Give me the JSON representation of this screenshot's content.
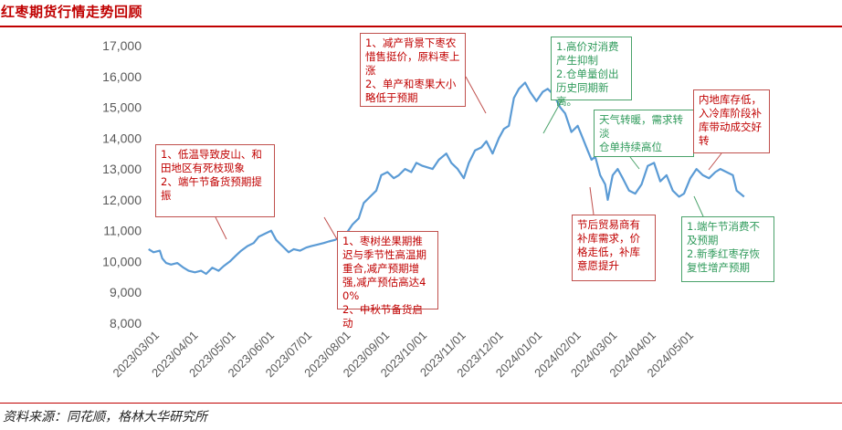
{
  "header": {
    "title": "红枣期货行情走势回顾"
  },
  "footer": {
    "source": "资料来源：同花顺，格林大华研究所"
  },
  "colors": {
    "line": "#5b9bd5",
    "title": "#c00000",
    "red_callout": "#c00000",
    "green_callout": "#2e9a5a"
  },
  "chart_data": {
    "type": "line",
    "title": "",
    "xlabel": "",
    "ylabel": "",
    "ylim": [
      8000,
      17000
    ],
    "yticks": [
      "8,000",
      "9,000",
      "10,000",
      "11,000",
      "12,000",
      "13,000",
      "14,000",
      "15,000",
      "16,000",
      "17,000"
    ],
    "xticks": [
      "2023/03/01",
      "2023/04/01",
      "2023/05/01",
      "2023/06/01",
      "2023/07/01",
      "2023/08/01",
      "2023/09/01",
      "2023/10/01",
      "2023/11/01",
      "2023/12/01",
      "2024/01/01",
      "2024/02/01",
      "2024/03/01",
      "2024/04/01",
      "2024/05/01"
    ],
    "grid": false,
    "legend": "none",
    "series": [
      {
        "points": [
          [
            "2023-02-20",
            10400
          ],
          [
            "2023-02-24",
            10300
          ],
          [
            "2023-03-01",
            10350
          ],
          [
            "2023-03-03",
            10100
          ],
          [
            "2023-03-06",
            9950
          ],
          [
            "2023-03-10",
            9900
          ],
          [
            "2023-03-15",
            9950
          ],
          [
            "2023-03-20",
            9800
          ],
          [
            "2023-03-24",
            9700
          ],
          [
            "2023-03-29",
            9650
          ],
          [
            "2023-04-03",
            9700
          ],
          [
            "2023-04-07",
            9600
          ],
          [
            "2023-04-12",
            9800
          ],
          [
            "2023-04-17",
            9700
          ],
          [
            "2023-04-21",
            9850
          ],
          [
            "2023-04-26",
            10000
          ],
          [
            "2023-05-01",
            10200
          ],
          [
            "2023-05-05",
            10350
          ],
          [
            "2023-05-10",
            10500
          ],
          [
            "2023-05-15",
            10600
          ],
          [
            "2023-05-19",
            10800
          ],
          [
            "2023-05-24",
            10900
          ],
          [
            "2023-05-29",
            11000
          ],
          [
            "2023-06-02",
            10700
          ],
          [
            "2023-06-07",
            10500
          ],
          [
            "2023-06-12",
            10300
          ],
          [
            "2023-06-16",
            10400
          ],
          [
            "2023-06-21",
            10350
          ],
          [
            "2023-06-26",
            10450
          ],
          [
            "2023-06-30",
            10500
          ],
          [
            "2023-07-05",
            10550
          ],
          [
            "2023-07-10",
            10600
          ],
          [
            "2023-07-14",
            10650
          ],
          [
            "2023-07-19",
            10700
          ],
          [
            "2023-07-24",
            10800
          ],
          [
            "2023-07-28",
            10900
          ],
          [
            "2023-08-02",
            11200
          ],
          [
            "2023-08-07",
            11400
          ],
          [
            "2023-08-11",
            11900
          ],
          [
            "2023-08-16",
            12100
          ],
          [
            "2023-08-21",
            12300
          ],
          [
            "2023-08-25",
            12800
          ],
          [
            "2023-08-30",
            12900
          ],
          [
            "2023-09-04",
            12700
          ],
          [
            "2023-09-08",
            12800
          ],
          [
            "2023-09-13",
            13000
          ],
          [
            "2023-09-18",
            12900
          ],
          [
            "2023-09-22",
            13200
          ],
          [
            "2023-09-27",
            13100
          ],
          [
            "2023-10-05",
            13000
          ],
          [
            "2023-10-10",
            13300
          ],
          [
            "2023-10-16",
            13500
          ],
          [
            "2023-10-20",
            13200
          ],
          [
            "2023-10-25",
            13000
          ],
          [
            "2023-10-30",
            12700
          ],
          [
            "2023-11-03",
            13200
          ],
          [
            "2023-11-08",
            13600
          ],
          [
            "2023-11-13",
            13700
          ],
          [
            "2023-11-17",
            13900
          ],
          [
            "2023-11-22",
            13500
          ],
          [
            "2023-11-27",
            14000
          ],
          [
            "2023-12-01",
            14300
          ],
          [
            "2023-12-05",
            14400
          ],
          [
            "2023-12-09",
            15300
          ],
          [
            "2023-12-13",
            15600
          ],
          [
            "2023-12-18",
            15800
          ],
          [
            "2023-12-22",
            15500
          ],
          [
            "2023-12-27",
            15200
          ],
          [
            "2024-01-01",
            15500
          ],
          [
            "2024-01-05",
            15600
          ],
          [
            "2024-01-10",
            15400
          ],
          [
            "2024-01-15",
            15000
          ],
          [
            "2024-01-19",
            14800
          ],
          [
            "2024-01-24",
            14200
          ],
          [
            "2024-01-29",
            14400
          ],
          [
            "2024-02-02",
            14000
          ],
          [
            "2024-02-06",
            13600
          ],
          [
            "2024-02-09",
            13300
          ],
          [
            "2024-02-12",
            13400
          ],
          [
            "2024-02-16",
            12800
          ],
          [
            "2024-02-20",
            12500
          ],
          [
            "2024-02-22",
            12000
          ],
          [
            "2024-02-26",
            12800
          ],
          [
            "2024-03-01",
            13000
          ],
          [
            "2024-03-05",
            12700
          ],
          [
            "2024-03-10",
            12300
          ],
          [
            "2024-03-15",
            12200
          ],
          [
            "2024-03-20",
            12500
          ],
          [
            "2024-03-25",
            13100
          ],
          [
            "2024-03-30",
            13200
          ],
          [
            "2024-04-04",
            12600
          ],
          [
            "2024-04-09",
            12800
          ],
          [
            "2024-04-14",
            12300
          ],
          [
            "2024-04-19",
            12100
          ],
          [
            "2024-04-23",
            12200
          ],
          [
            "2024-04-28",
            12700
          ],
          [
            "2024-05-03",
            13000
          ],
          [
            "2024-05-08",
            12800
          ],
          [
            "2024-05-13",
            12700
          ],
          [
            "2024-05-18",
            12900
          ],
          [
            "2024-05-22",
            13000
          ],
          [
            "2024-05-27",
            12900
          ],
          [
            "2024-06-01",
            12800
          ],
          [
            "2024-06-04",
            12300
          ],
          [
            "2024-06-07",
            12200
          ],
          [
            "2024-06-10",
            12100
          ]
        ]
      }
    ],
    "annotations": [
      {
        "text": "1、低温导致皮山、和田地区有死枝现象\n2、端午节备货预期提振",
        "color": "red"
      },
      {
        "text": "1、枣树坐果期推迟与季节性高温期重合,减产预期增强,减产预估高达40%\n2、中秋节备货启动",
        "color": "red"
      },
      {
        "text": "1、减产背景下枣农惜售挺价，原料枣上涨\n2、单产和枣果大小略低于预期",
        "color": "red"
      },
      {
        "text": "1.高价对消费产生抑制\n2.仓单量创出历史同期新高。",
        "color": "green"
      },
      {
        "text": "天气转暖，需求转淡\n仓单持续高位",
        "color": "green"
      },
      {
        "text": "节后贸易商有补库需求，价格走低，补库意愿提升",
        "color": "red"
      },
      {
        "text": "内地库存低，入冷库阶段补库带动成交好转",
        "color": "red"
      },
      {
        "text": "1.端午节消费不及预期\n2.新季红枣存恢复性增产预期",
        "color": "green"
      }
    ]
  }
}
